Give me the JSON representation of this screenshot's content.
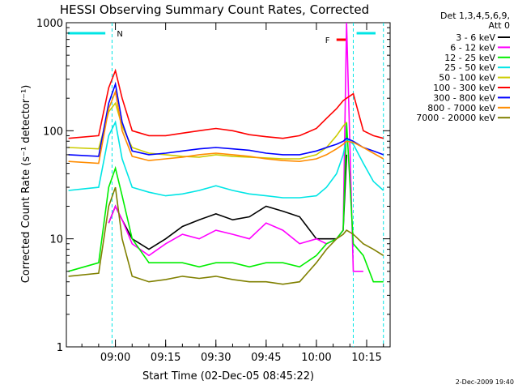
{
  "chart_data": {
    "type": "line",
    "title": "HESSI Observing Summary Count Rates, Corrected",
    "xlabel": "Start Time (02-Dec-05 08:45:22)",
    "ylabel": "Corrected Count Rate (s⁻¹ detector⁻¹)",
    "ylim": [
      1,
      1000
    ],
    "yscale": "log",
    "xlim": [
      "08:45:22",
      "10:22:00"
    ],
    "x_ticks": [
      "09:00",
      "09:15",
      "09:30",
      "09:45",
      "10:00",
      "10:15"
    ],
    "y_ticks": [
      "1",
      "10",
      "100",
      "1000"
    ],
    "legend_header": [
      "Det 1,3,4,5,6,9,",
      "Att 0"
    ],
    "legend_position": "right",
    "timestamp": "2-Dec-2009 19:40",
    "flag_labels": [
      {
        "text": "N",
        "color": "#00e5e5"
      },
      {
        "text": "F",
        "color": "#ff0000"
      }
    ],
    "x": [
      "08:46",
      "08:55",
      "08:58",
      "09:00",
      "09:02",
      "09:05",
      "09:10",
      "09:15",
      "09:20",
      "09:25",
      "09:30",
      "09:35",
      "09:40",
      "09:45",
      "09:50",
      "09:55",
      "10:00",
      "10:03",
      "10:06",
      "10:08",
      "10:09",
      "10:11",
      "10:14",
      "10:17",
      "10:20"
    ],
    "series": [
      {
        "name": "3 - 6 keV",
        "color": "#000000",
        "values": [
          null,
          null,
          14,
          20,
          15,
          10,
          8,
          10,
          13,
          15,
          17,
          15,
          16,
          20,
          18,
          16,
          10,
          10,
          10,
          12,
          60,
          null,
          null,
          null,
          null
        ]
      },
      {
        "name": "6 - 12 keV",
        "color": "#ff00ff",
        "values": [
          null,
          null,
          14,
          20,
          15,
          9,
          7,
          9,
          11,
          10,
          12,
          11,
          10,
          14,
          12,
          9,
          10,
          9,
          10,
          12,
          1000,
          5,
          5,
          null,
          null
        ]
      },
      {
        "name": "12 - 25 keV",
        "color": "#00ee00",
        "values": [
          5,
          6,
          30,
          45,
          25,
          10,
          6,
          6,
          6,
          5.5,
          6,
          6,
          5.5,
          6,
          6,
          5.5,
          7,
          9,
          10,
          12,
          120,
          9,
          7,
          4,
          4
        ]
      },
      {
        "name": "25 - 50 keV",
        "color": "#00e5e5",
        "values": [
          28,
          30,
          90,
          120,
          55,
          30,
          27,
          25,
          26,
          28,
          31,
          28,
          26,
          25,
          24,
          24,
          25,
          30,
          40,
          60,
          85,
          75,
          50,
          34,
          28
        ]
      },
      {
        "name": "50 - 100 keV",
        "color": "#cccc00",
        "values": [
          70,
          68,
          150,
          180,
          110,
          70,
          62,
          60,
          58,
          57,
          60,
          58,
          57,
          56,
          55,
          55,
          60,
          70,
          90,
          110,
          120,
          null,
          null,
          null,
          null
        ]
      },
      {
        "name": "100 - 300 keV",
        "color": "#ff0000",
        "values": [
          85,
          90,
          250,
          360,
          200,
          100,
          90,
          90,
          95,
          100,
          105,
          100,
          92,
          88,
          85,
          90,
          105,
          130,
          160,
          190,
          200,
          220,
          100,
          90,
          85
        ]
      },
      {
        "name": "300 - 800 keV",
        "color": "#0000ff",
        "values": [
          60,
          58,
          180,
          270,
          120,
          65,
          60,
          62,
          65,
          68,
          70,
          68,
          66,
          62,
          60,
          60,
          65,
          70,
          75,
          80,
          85,
          80,
          70,
          65,
          60
        ]
      },
      {
        "name": "800 - 7000 keV",
        "color": "#ff8c00",
        "values": [
          52,
          50,
          160,
          230,
          100,
          58,
          53,
          55,
          57,
          60,
          62,
          60,
          58,
          55,
          53,
          52,
          55,
          60,
          68,
          75,
          80,
          78,
          70,
          62,
          55
        ]
      },
      {
        "name": "7000 - 20000 keV",
        "color": "#808000",
        "values": [
          4.5,
          4.8,
          20,
          30,
          10,
          4.5,
          4,
          4.2,
          4.5,
          4.3,
          4.5,
          4.2,
          4,
          4,
          3.8,
          4,
          6,
          8,
          10,
          11,
          12,
          11,
          9,
          8,
          7
        ]
      }
    ]
  }
}
